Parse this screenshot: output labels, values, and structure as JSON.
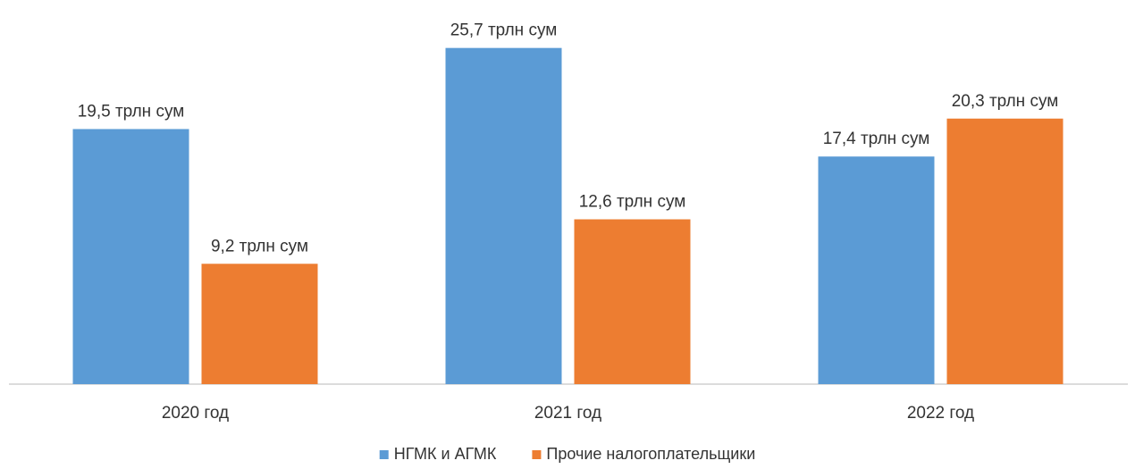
{
  "chart_data": {
    "type": "bar",
    "categories": [
      "2020 год",
      "2021 год",
      "2022 год"
    ],
    "series": [
      {
        "name": "НГМК и АГМК",
        "values": [
          19.5,
          25.7,
          17.4
        ],
        "labels": [
          "19,5 трлн сум",
          "25,7 трлн сум",
          "17,4 трлн сум"
        ],
        "color": "#5B9BD5"
      },
      {
        "name": "Прочие налогоплательщики",
        "values": [
          9.2,
          12.6,
          20.3
        ],
        "labels": [
          "9,2 трлн сум",
          "12,6 трлн сум",
          "20,3 трлн сум"
        ],
        "color": "#ED7D31"
      }
    ],
    "ylim": [
      0,
      28
    ],
    "grid": false,
    "legend_position": "bottom"
  }
}
